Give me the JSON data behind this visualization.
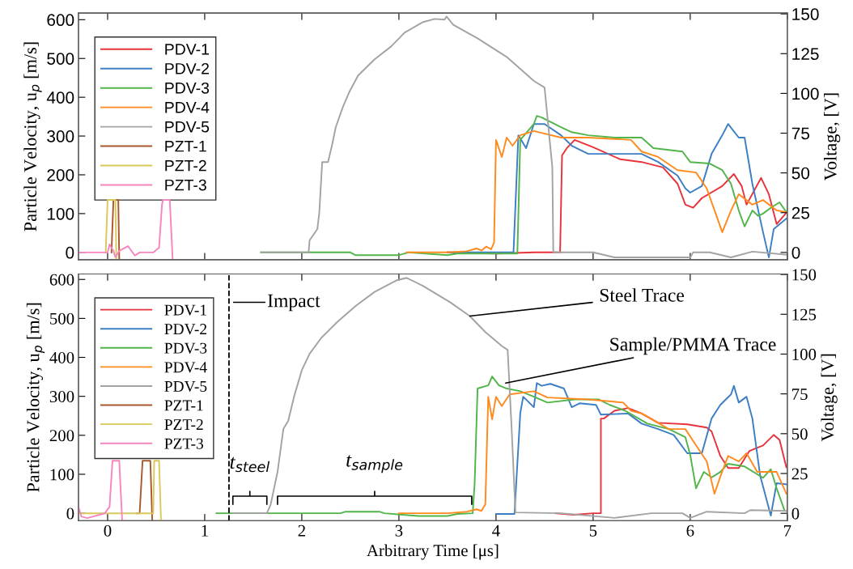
{
  "chart_data": [
    {
      "type": "line",
      "ylabel": "Particle Velocity, u$_{p}$ [m/s]",
      "y2label": "Voltage, [V]",
      "xlim": [
        -0.3,
        7
      ],
      "xticks": [
        0,
        1,
        2,
        3,
        4,
        5,
        6,
        7
      ],
      "ylim": [
        -19,
        617
      ],
      "yticks": [
        0,
        100,
        200,
        300,
        400,
        500,
        600
      ],
      "y2lim": [
        -4.6,
        150.5
      ],
      "y2ticks": [
        0,
        25,
        50,
        75,
        100,
        125,
        150
      ],
      "tick_labels": "y",
      "legend": "top left",
      "grid": false,
      "line_style": "solid",
      "series": [
        {
          "name": "PDV-1",
          "color": "#e8333b",
          "x": [
            3.5,
            4.0,
            4.4,
            4.66,
            4.68,
            4.73,
            4.81,
            5.0,
            5.28,
            5.5,
            5.72,
            5.87,
            5.95,
            6.03,
            6.12,
            6.33,
            6.45,
            6.53,
            6.58,
            6.73,
            6.81,
            6.89,
            6.99
          ],
          "values": [
            0,
            -3,
            0,
            0,
            250,
            269,
            290,
            271,
            240,
            233,
            219,
            177,
            123,
            115,
            140,
            171,
            202,
            171,
            123,
            192,
            150,
            73,
            102
          ]
        },
        {
          "name": "PDV-2",
          "color": "#3d7fc4",
          "x": [
            3.5,
            4.18,
            4.23,
            4.31,
            4.39,
            4.5,
            4.67,
            4.78,
            4.95,
            5.37,
            5.5,
            5.67,
            5.87,
            5.95,
            6.0,
            6.12,
            6.22,
            6.33,
            6.39,
            6.5,
            6.56,
            6.64,
            6.75,
            6.81,
            6.86,
            6.99
          ],
          "values": [
            0,
            0,
            302,
            269,
            331,
            331,
            302,
            275,
            254,
            254,
            254,
            233,
            198,
            165,
            154,
            171,
            254,
            302,
            331,
            296,
            296,
            177,
            52,
            -13,
            60,
            87
          ]
        },
        {
          "name": "PDV-3",
          "color": "#52b54a",
          "x": [
            1.58,
            2.5,
            2.55,
            3.0,
            3.1,
            3.5,
            3.6,
            4.22,
            4.25,
            4.39,
            4.42,
            4.47,
            4.67,
            4.78,
            4.95,
            5.22,
            5.5,
            5.62,
            5.92,
            6.0,
            6.2,
            6.33,
            6.42,
            6.5,
            6.56,
            6.64,
            6.7,
            6.75,
            6.83,
            6.92,
            6.99
          ],
          "values": [
            0,
            0,
            -7,
            -7,
            0,
            -7,
            -3,
            -3,
            290,
            331,
            352,
            348,
            323,
            310,
            302,
            296,
            296,
            269,
            260,
            233,
            229,
            212,
            177,
            108,
            67,
            108,
            94,
            100,
            115,
            129,
            104
          ]
        },
        {
          "name": "PDV-4",
          "color": "#ff8a1e",
          "x": [
            3.08,
            3.5,
            3.7,
            3.8,
            3.85,
            3.9,
            3.95,
            3.98,
            4.0,
            4.06,
            4.11,
            4.17,
            4.25,
            4.39,
            4.67,
            4.95,
            5.39,
            5.5,
            5.67,
            5.87,
            6.06,
            6.17,
            6.33,
            6.42,
            6.5,
            6.64,
            6.75,
            6.89,
            6.99
          ],
          "values": [
            0,
            0,
            3,
            10,
            5,
            15,
            8,
            25,
            290,
            246,
            296,
            275,
            302,
            313,
            296,
            296,
            290,
            260,
            246,
            212,
            206,
            165,
            52,
            108,
            150,
            123,
            135,
            108,
            104
          ]
        },
        {
          "name": "PDV-5",
          "color": "#a3a3a3",
          "x": [
            1.58,
            2.07,
            2.08,
            2.16,
            2.18,
            2.21,
            2.27,
            2.31,
            2.35,
            2.42,
            2.49,
            2.58,
            2.75,
            2.92,
            3.06,
            3.25,
            3.37,
            3.47,
            3.49,
            3.56,
            3.81,
            4.11,
            4.39,
            4.5,
            4.58,
            4.59,
            5.0,
            5.22,
            6.0,
            6.03,
            6.2,
            6.42,
            6.64,
            7.0
          ],
          "values": [
            0,
            0,
            31,
            60,
            102,
            233,
            233,
            275,
            323,
            373,
            414,
            456,
            498,
            531,
            567,
            594,
            602,
            600,
            608,
            587,
            552,
            504,
            442,
            425,
            219,
            0,
            0,
            -13,
            -13,
            0,
            0,
            -13,
            2,
            -6
          ]
        },
        {
          "name": "PZT-1",
          "color": "#a65a2e",
          "axis": "y2",
          "x": [
            0.04,
            0.06,
            0.11,
            0.12
          ],
          "values": [
            0,
            33,
            33,
            -4
          ]
        },
        {
          "name": "PZT-2",
          "color": "#d9c95c",
          "axis": "y2",
          "x": [
            -0.02,
            0.0,
            0.08,
            0.09
          ],
          "values": [
            0,
            33,
            33,
            -4
          ]
        },
        {
          "name": "PZT-3",
          "color": "#f785c0",
          "axis": "y2",
          "x": [
            -0.3,
            0.0,
            0.02,
            0.06,
            0.08,
            0.12,
            0.21,
            0.28,
            0.33,
            0.47,
            0.53,
            0.56,
            0.57,
            0.64,
            0.67
          ],
          "values": [
            0,
            0,
            5,
            1,
            -3,
            1,
            4,
            -2,
            0,
            0,
            3,
            30,
            33,
            33,
            -4.5
          ]
        }
      ]
    },
    {
      "type": "line",
      "xlabel": "Arbitrary Time [μs]",
      "ylabel": "Particle Velocity, u$_{p}$ [m/s]",
      "y2label": "Voltage, [V]",
      "xlim": [
        -0.3,
        7
      ],
      "xticks": [
        0,
        1,
        2,
        3,
        4,
        5,
        6,
        7
      ],
      "ylim": [
        -19,
        614
      ],
      "yticks": [
        0,
        100,
        200,
        300,
        400,
        500,
        600
      ],
      "y2lim": [
        -4.6,
        150.3
      ],
      "y2ticks": [
        0,
        25,
        50,
        75,
        100,
        125,
        150
      ],
      "legend": "top left",
      "grid": false,
      "line_style": "solid",
      "ref_lines": [
        {
          "axis": "x",
          "value": 1.25,
          "label": "Impact",
          "line_style": "dashed",
          "color": "#000000"
        }
      ],
      "annotations": [
        {
          "text": "Steel Trace",
          "x": 3.73,
          "y": 506
        },
        {
          "text": "Sample/PMMA Trace",
          "x": 4.1,
          "y": 334
        },
        "t$_{steel}$",
        "t$_{sample}$"
      ],
      "series": [
        {
          "name": "PDV-1",
          "color": "#e8333b",
          "x": [
            4.61,
            4.8,
            5.0,
            5.08,
            5.08,
            5.11,
            5.22,
            5.36,
            5.5,
            5.67,
            5.97,
            6.17,
            6.22,
            6.31,
            6.39,
            6.5,
            6.61,
            6.75,
            6.86,
            6.92,
            6.99
          ],
          "values": [
            0,
            -4,
            0,
            0,
            243,
            243,
            263,
            270,
            256,
            232,
            228,
            220,
            210,
            147,
            116,
            116,
            160,
            174,
            201,
            188,
            118
          ]
        },
        {
          "name": "PDV-2",
          "color": "#3d7fc4",
          "x": [
            4.0,
            4.19,
            4.25,
            4.28,
            4.39,
            4.42,
            4.47,
            4.56,
            4.7,
            4.78,
            4.86,
            5.03,
            5.08,
            5.36,
            5.5,
            5.67,
            5.83,
            5.97,
            6.12,
            6.22,
            6.31,
            6.42,
            6.45,
            6.5,
            6.58,
            6.64,
            6.72,
            6.83,
            6.89,
            6.99
          ],
          "values": [
            -2,
            -2,
            257,
            299,
            272,
            334,
            327,
            332,
            320,
            272,
            282,
            278,
            253,
            256,
            230,
            216,
            201,
            154,
            154,
            243,
            278,
            305,
            327,
            284,
            299,
            243,
            97,
            -6,
            77,
            74
          ]
        },
        {
          "name": "PDV-3",
          "color": "#52b54a",
          "x": [
            1.12,
            2.4,
            2.45,
            2.8,
            2.85,
            3.2,
            3.5,
            3.6,
            3.76,
            3.78,
            3.81,
            3.92,
            3.96,
            4.03,
            4.11,
            4.25,
            4.39,
            4.53,
            4.81,
            5.06,
            5.17,
            5.33,
            5.56,
            5.78,
            5.95,
            6.0,
            6.06,
            6.14,
            6.22,
            6.31,
            6.39,
            6.56,
            6.75,
            6.83,
            6.89,
            6.97
          ],
          "values": [
            0,
            0,
            4,
            4,
            0,
            -7,
            -7,
            -2,
            0,
            77,
            320,
            328,
            351,
            328,
            320,
            313,
            299,
            284,
            292,
            292,
            278,
            263,
            230,
            216,
            195,
            150,
            64,
            106,
            92,
            106,
            127,
            120,
            91,
            113,
            64,
            8
          ]
        },
        {
          "name": "PDV-4",
          "color": "#ff8a1e",
          "x": [
            3.0,
            3.5,
            3.7,
            3.8,
            3.85,
            3.89,
            3.92,
            3.96,
            4.0,
            4.06,
            4.14,
            4.39,
            4.53,
            4.95,
            5.31,
            5.39,
            5.5,
            5.78,
            5.95,
            6.06,
            6.17,
            6.25,
            6.31,
            6.39,
            6.5,
            6.58,
            6.69,
            6.89,
            6.99
          ],
          "values": [
            0,
            0,
            4,
            10,
            6,
            23,
            299,
            241,
            299,
            275,
            305,
            313,
            297,
            292,
            284,
            263,
            256,
            216,
            216,
            174,
            133,
            50,
            94,
            147,
            133,
            154,
            106,
            106,
            50
          ]
        },
        {
          "name": "PDV-5",
          "color": "#a3a3a3",
          "x": [
            1.29,
            1.64,
            1.68,
            1.75,
            1.81,
            1.86,
            1.92,
            2.0,
            2.08,
            2.2,
            2.37,
            2.56,
            2.75,
            2.98,
            3.08,
            3.25,
            3.53,
            3.73,
            3.89,
            4.06,
            4.12,
            4.16,
            4.2,
            4.67,
            5.22,
            5.6,
            5.92,
            6.0,
            6.17,
            6.56,
            6.62,
            6.99
          ],
          "values": [
            0,
            0,
            23,
            106,
            216,
            237,
            299,
            367,
            409,
            450,
            492,
            533,
            568,
            598,
            604,
            583,
            541,
            506,
            465,
            429,
            419,
            222,
            2,
            0,
            -12,
            0,
            0,
            -12,
            4,
            0,
            8,
            6
          ]
        },
        {
          "name": "PZT-1",
          "color": "#a65a2e",
          "axis": "y2",
          "x": [
            0.3,
            0.33,
            0.36,
            0.44,
            0.46
          ],
          "values": [
            0,
            0,
            33,
            33,
            -4.5
          ]
        },
        {
          "name": "PZT-2",
          "color": "#d9c95c",
          "axis": "y2",
          "x": [
            -0.3,
            0.47,
            0.48,
            0.53,
            0.55
          ],
          "values": [
            0,
            0,
            33,
            33,
            -4.5
          ]
        },
        {
          "name": "PZT-3",
          "color": "#f785c0",
          "axis": "y2",
          "x": [
            -0.3,
            -0.27,
            -0.21,
            -0.03,
            0.02,
            0.05,
            0.12,
            0.15
          ],
          "values": [
            4,
            -2,
            -3,
            0,
            4,
            33,
            33,
            -4.5
          ]
        }
      ]
    }
  ]
}
